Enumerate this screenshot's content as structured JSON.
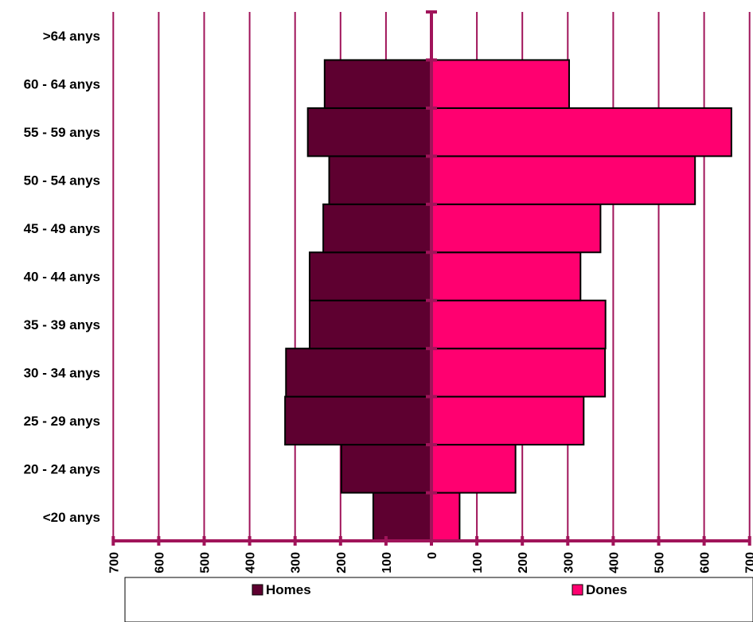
{
  "colors": {
    "homes": "#5E0030",
    "dones": "#FF0070",
    "axis": "#A0145A",
    "outline": "#000000"
  },
  "chart_data": {
    "type": "bar",
    "orientation": "horizontal",
    "layout": "population-pyramid",
    "title": "",
    "xlabel": "",
    "ylabel": "",
    "xlim": [
      -700,
      700
    ],
    "ticks": [
      700,
      600,
      500,
      400,
      300,
      200,
      100,
      0,
      100,
      200,
      300,
      400,
      500,
      600,
      700
    ],
    "categories": [
      "<20 anys",
      "20 - 24 anys",
      "25 - 29 anys",
      "30 - 34 anys",
      "35 - 39 anys",
      "40 - 44 anys",
      "45 - 49 anys",
      "50 - 54 anys",
      "55 - 59 anys",
      "60 - 64 anys",
      ">64 anys"
    ],
    "series": [
      {
        "name": "Homes",
        "side": "left",
        "values": [
          128,
          198,
          322,
          320,
          268,
          268,
          238,
          225,
          272,
          235,
          0
        ]
      },
      {
        "name": "Dones",
        "side": "right",
        "values": [
          62,
          185,
          335,
          382,
          383,
          328,
          372,
          580,
          660,
          303,
          0
        ]
      }
    ],
    "grid": true,
    "legend": {
      "position": "bottom",
      "entries": [
        "Homes",
        "Dones"
      ]
    }
  }
}
